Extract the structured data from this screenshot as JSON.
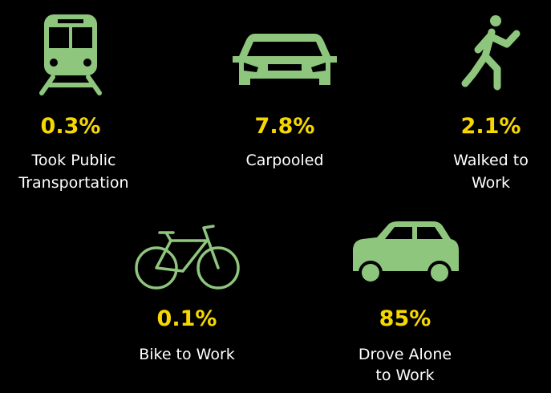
{
  "items": [
    {
      "percent": "0.3%",
      "label": [
        "Took Public",
        "Transportation"
      ]
    },
    {
      "percent": "7.8%",
      "label": [
        "Carpooled"
      ]
    },
    {
      "percent": "2.1%",
      "label": [
        "Walked to",
        "Work"
      ]
    },
    {
      "percent": "0.1%",
      "label": [
        "Bike to Work"
      ]
    },
    {
      "percent": "85%",
      "label": [
        "Drove Alone",
        "to Work"
      ]
    }
  ]
}
